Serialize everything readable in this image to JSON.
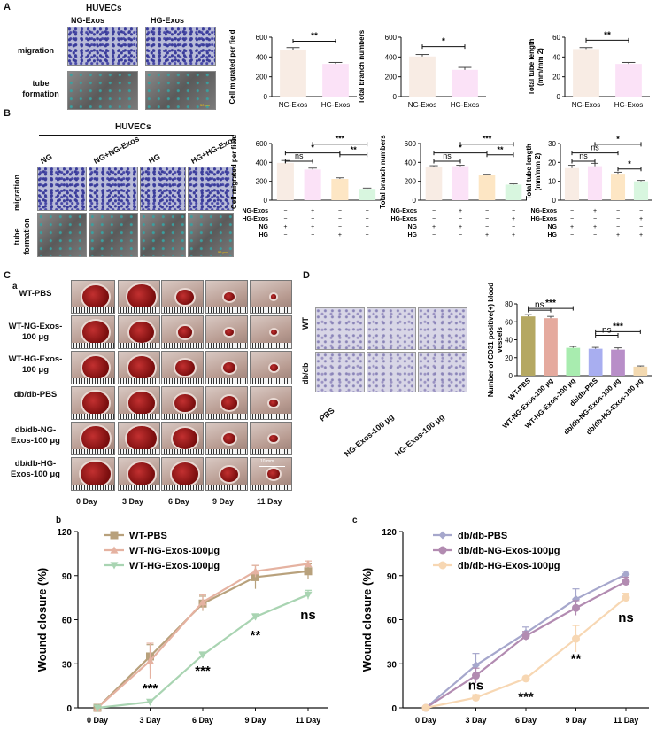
{
  "panels": {
    "A": "A",
    "B": "B",
    "C": "C",
    "Ca": "a",
    "Cb": "b",
    "Cc": "c",
    "D": "D"
  },
  "huvecs_title": "HUVECs",
  "panelA": {
    "col_labels": [
      "NG-Exos",
      "HG-Exos"
    ],
    "row_labels": [
      "migration",
      "tube formation"
    ],
    "scale_text": "50 μm"
  },
  "panelB": {
    "col_labels": [
      "NG",
      "NG+NG-Exos",
      "HG",
      "HG+HG-Exos"
    ],
    "row_labels": [
      "migration",
      "tube formation"
    ],
    "scale_text": "50 μm"
  },
  "panelC": {
    "rows": [
      "WT-PBS",
      "WT-NG-Exos-100 μg",
      "WT-HG-Exos-100 μg",
      "db/db-PBS",
      "db/db-NG-Exos-100 μg",
      "db/db-HG-Exos-100 μg"
    ],
    "days": [
      "0 Day",
      "3 Day",
      "6 Day",
      "9 Day",
      "11 Day"
    ],
    "scale_text": "10 mm"
  },
  "panelD": {
    "row_labels": [
      "WT",
      "db/db"
    ],
    "col_labels": [
      "PBS",
      "NG-Exos-100 μg",
      "HG-Exos-100 μg"
    ]
  },
  "chart_data": [
    {
      "id": "A1",
      "type": "bar",
      "categories": [
        "NG-Exos",
        "HG-Exos"
      ],
      "values": [
        475,
        330
      ],
      "errors": [
        20,
        15
      ],
      "ylim": [
        0,
        600
      ],
      "yticks": [
        0,
        200,
        400,
        600
      ],
      "ylabel": "Cell migrated per field",
      "colors": [
        "#f8ece4",
        "#fbe2f7"
      ],
      "sig": [
        {
          "a": 0,
          "b": 1,
          "label": "**"
        }
      ]
    },
    {
      "id": "A2",
      "type": "bar",
      "categories": [
        "NG-Exos",
        "HG-Exos"
      ],
      "values": [
        405,
        270
      ],
      "errors": [
        20,
        25
      ],
      "ylim": [
        0,
        600
      ],
      "yticks": [
        0,
        200,
        400,
        600
      ],
      "ylabel": "Total branch numbers",
      "colors": [
        "#f8ece4",
        "#fbe2f7"
      ],
      "sig": [
        {
          "a": 0,
          "b": 1,
          "label": "*"
        }
      ]
    },
    {
      "id": "A3",
      "type": "bar",
      "categories": [
        "NG-Exos",
        "HG-Exos"
      ],
      "values": [
        48,
        33
      ],
      "errors": [
        1.5,
        1.5
      ],
      "ylim": [
        0,
        60
      ],
      "yticks": [
        0,
        20,
        40,
        60
      ],
      "ylabel": "Total tube length (mm/mm 2)",
      "colors": [
        "#f8ece4",
        "#fbe2f7"
      ],
      "sig": [
        {
          "a": 0,
          "b": 1,
          "label": "**"
        }
      ]
    },
    {
      "id": "B1",
      "type": "bar",
      "values": [
        395,
        325,
        225,
        120
      ],
      "errors": [
        25,
        15,
        12,
        8
      ],
      "ylim": [
        0,
        600
      ],
      "yticks": [
        0,
        200,
        400,
        600
      ],
      "ylabel": "Cell migrated per field",
      "colors": [
        "#f8ece4",
        "#fbe2f7",
        "#fde6c4",
        "#d8f6df"
      ],
      "sig": [
        {
          "a": 0,
          "b": 1,
          "label": "ns"
        },
        {
          "a": 0,
          "b": 2,
          "label": "*"
        },
        {
          "a": 2,
          "b": 3,
          "label": "**"
        },
        {
          "a": 1,
          "b": 3,
          "label": "***"
        }
      ]
    },
    {
      "id": "B2",
      "type": "bar",
      "values": [
        355,
        360,
        265,
        165
      ],
      "errors": [
        10,
        10,
        10,
        8
      ],
      "ylim": [
        0,
        600
      ],
      "yticks": [
        0,
        200,
        400,
        600
      ],
      "ylabel": "Total branch numbers",
      "colors": [
        "#f8ece4",
        "#fbe2f7",
        "#fde6c4",
        "#d8f6df"
      ],
      "sig": [
        {
          "a": 0,
          "b": 1,
          "label": "ns"
        },
        {
          "a": 0,
          "b": 2,
          "label": "*"
        },
        {
          "a": 2,
          "b": 3,
          "label": "**"
        },
        {
          "a": 1,
          "b": 3,
          "label": "***"
        }
      ]
    },
    {
      "id": "B3",
      "type": "bar",
      "values": [
        17,
        18,
        14,
        10
      ],
      "errors": [
        1.5,
        1.5,
        0.8,
        0.5
      ],
      "ylim": [
        0,
        30
      ],
      "yticks": [
        0,
        10,
        20,
        30
      ],
      "ylabel": "Total tube length (mm/mm 2)",
      "colors": [
        "#f8ece4",
        "#fbe2f7",
        "#fde6c4",
        "#d8f6df"
      ],
      "sig": [
        {
          "a": 0,
          "b": 1,
          "label": "ns"
        },
        {
          "a": 0,
          "b": 2,
          "label": "ns"
        },
        {
          "a": 2,
          "b": 3,
          "label": "*"
        },
        {
          "a": 1,
          "b": 3,
          "label": "*"
        }
      ]
    },
    {
      "id": "D1",
      "type": "bar",
      "categories": [
        "WT-PBS",
        "WT-NG-Exos-100 μg",
        "WT-HG-Exos-100 μg",
        "db/db-PBS",
        "db/db-NG-Exos-100 μg",
        "db/db-HG-Exos-100 μg"
      ],
      "values": [
        66,
        64,
        31,
        30,
        29,
        10
      ],
      "errors": [
        2,
        2,
        1.5,
        1.5,
        2,
        0.8
      ],
      "ylim": [
        0,
        80
      ],
      "yticks": [
        0,
        20,
        40,
        60,
        80
      ],
      "ylabel": "Number of CD31 positive(+) blood vessels",
      "colors": [
        "#b5a862",
        "#e5aa9e",
        "#a8ecaf",
        "#a8aef0",
        "#b88ec8",
        "#f3d9b0"
      ],
      "sig": [
        {
          "a": 0,
          "b": 1,
          "label": "ns"
        },
        {
          "a": 0,
          "b": 2,
          "label": "***"
        },
        {
          "a": 3,
          "b": 4,
          "label": "ns"
        },
        {
          "a": 3,
          "b": 5,
          "label": "***"
        }
      ]
    },
    {
      "id": "Cb",
      "type": "line",
      "x": [
        "0 Day",
        "3 Day",
        "6 Day",
        "9 Day",
        "11 Day"
      ],
      "ylim": [
        0,
        120
      ],
      "yticks": [
        0,
        30,
        60,
        90,
        120
      ],
      "ylabel": "Wound closure (%)",
      "series": [
        {
          "name": "WT-PBS",
          "values": [
            0,
            35,
            71,
            89,
            93
          ],
          "errors": [
            0,
            8,
            5,
            8,
            5
          ],
          "color": "#b8a17c",
          "marker": "square"
        },
        {
          "name": "WT-NG-Exos-100μg",
          "values": [
            0,
            32,
            72,
            93,
            98
          ],
          "errors": [
            0,
            12,
            5,
            4,
            2
          ],
          "color": "#e5b2a1",
          "marker": "triangle-up"
        },
        {
          "name": "WT-HG-Exos-100μg",
          "values": [
            0,
            4,
            36,
            62,
            77
          ],
          "errors": [
            0,
            0,
            2,
            2,
            3
          ],
          "color": "#a9d4b2",
          "marker": "triangle-down"
        }
      ],
      "annotations": [
        {
          "x": 1,
          "y": 14,
          "label": "***"
        },
        {
          "x": 2,
          "y": 26,
          "label": "***"
        },
        {
          "x": 3,
          "y": 50,
          "label": "**"
        },
        {
          "x": 4,
          "y": 64,
          "label": "ns"
        }
      ]
    },
    {
      "id": "Cc",
      "type": "line",
      "x": [
        "0 Day",
        "3 Day",
        "6 Day",
        "9 Day",
        "11 Day"
      ],
      "ylim": [
        0,
        120
      ],
      "yticks": [
        0,
        30,
        60,
        90,
        120
      ],
      "ylabel": "Wound closure (%)",
      "series": [
        {
          "name": "db/db-PBS",
          "values": [
            0,
            29,
            51,
            74,
            91
          ],
          "errors": [
            0,
            8,
            4,
            7,
            2
          ],
          "color": "#a6a7cc",
          "marker": "diamond"
        },
        {
          "name": "db/db-NG-Exos-100μg",
          "values": [
            0,
            22,
            49,
            68,
            86
          ],
          "errors": [
            0,
            5,
            3,
            5,
            3
          ],
          "color": "#b28bb1",
          "marker": "circle"
        },
        {
          "name": "db/db-HG-Exos-100μg",
          "values": [
            0,
            7,
            20,
            47,
            75
          ],
          "errors": [
            0,
            2,
            1,
            9,
            3
          ],
          "color": "#f7d7b3",
          "marker": "circle"
        }
      ],
      "annotations": [
        {
          "x": 1,
          "y": 16,
          "label": "ns"
        },
        {
          "x": 2,
          "y": 8,
          "label": "***"
        },
        {
          "x": 3,
          "y": 34,
          "label": "**"
        },
        {
          "x": 4,
          "y": 62,
          "label": "ns"
        }
      ]
    }
  ],
  "colB_rows": {
    "rows": [
      "NG-Exos",
      "HG-Exos",
      "NG",
      "HG"
    ],
    "marks": [
      [
        "−",
        "+",
        "−",
        "−"
      ],
      [
        "−",
        "−",
        "−",
        "+"
      ],
      [
        "+",
        "+",
        "−",
        "−"
      ],
      [
        "−",
        "−",
        "+",
        "+"
      ]
    ]
  }
}
